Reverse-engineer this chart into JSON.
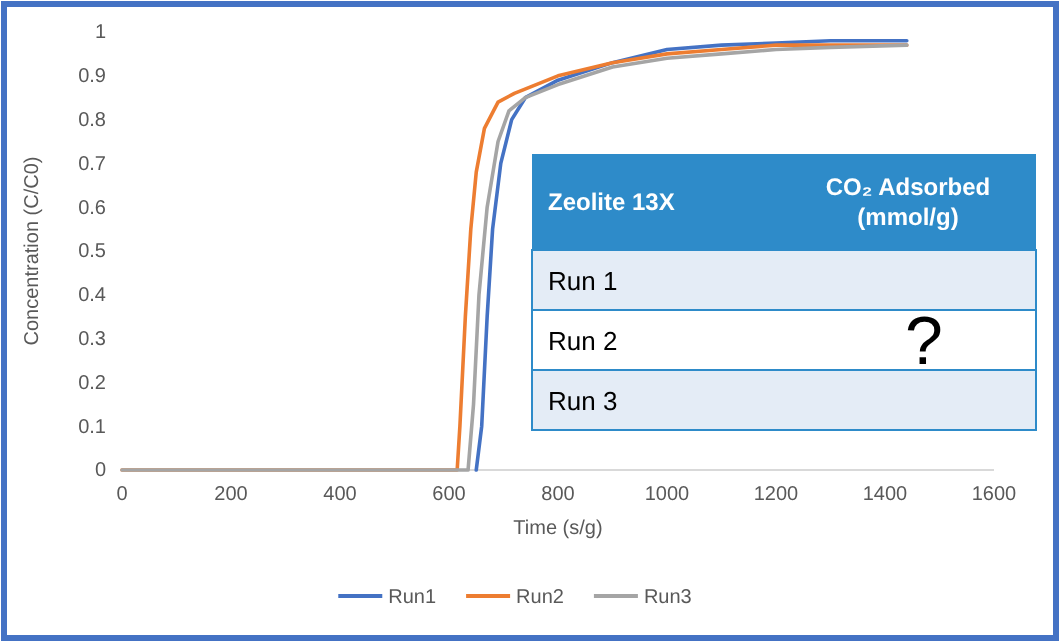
{
  "chart_data": {
    "type": "line",
    "xlabel": "Time (s/g)",
    "ylabel": "Concentration (C/C0)",
    "xlim": [
      0,
      1600
    ],
    "xticks": [
      0,
      200,
      400,
      600,
      800,
      1000,
      1200,
      1400,
      1600
    ],
    "ylim": [
      0,
      1
    ],
    "yticks": [
      0,
      0.1,
      0.2,
      0.3,
      0.4,
      0.5,
      0.6,
      0.7,
      0.8,
      0.9,
      1
    ],
    "grid": false,
    "legend": "bottom",
    "marker": "none",
    "line_style": "solid",
    "annotations": [
      "Zeolite 13X",
      "CO₂ Adsorbed (mmol/g)",
      "Run 1",
      "Run 2",
      "Run 3",
      "?"
    ],
    "series": [
      {
        "name": "Run1",
        "color": "#4472c4",
        "x": [
          650,
          660,
          670,
          680,
          695,
          715,
          740,
          800,
          900,
          1000,
          1100,
          1200,
          1300,
          1440
        ],
        "values": [
          0,
          0.1,
          0.35,
          0.55,
          0.7,
          0.8,
          0.85,
          0.89,
          0.93,
          0.96,
          0.97,
          0.975,
          0.98,
          0.98
        ]
      },
      {
        "name": "Run2",
        "color": "#ed7d31",
        "x": [
          0,
          300,
          600,
          615,
          620,
          630,
          640,
          650,
          665,
          690,
          720,
          800,
          900,
          1000,
          1100,
          1200,
          1300,
          1440
        ],
        "values": [
          0,
          0,
          0,
          0,
          0.1,
          0.35,
          0.55,
          0.68,
          0.78,
          0.84,
          0.86,
          0.9,
          0.93,
          0.95,
          0.96,
          0.97,
          0.97,
          0.97
        ]
      },
      {
        "name": "Run3",
        "color": "#a5a5a5",
        "x": [
          0,
          300,
          600,
          635,
          645,
          655,
          670,
          690,
          710,
          740,
          800,
          900,
          1000,
          1100,
          1200,
          1300,
          1440
        ],
        "values": [
          0,
          0,
          0,
          0,
          0.15,
          0.4,
          0.6,
          0.75,
          0.82,
          0.85,
          0.88,
          0.92,
          0.94,
          0.95,
          0.96,
          0.965,
          0.97
        ]
      }
    ]
  }
}
